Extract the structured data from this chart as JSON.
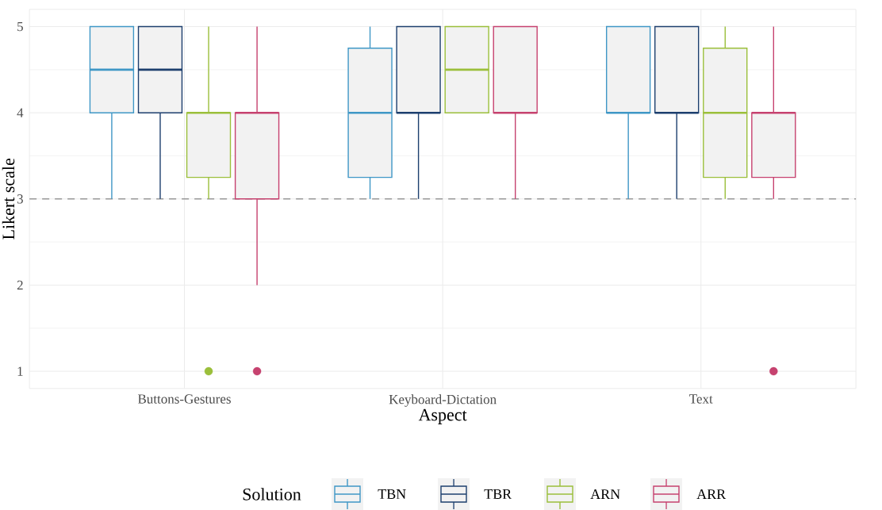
{
  "chart_data": {
    "type": "box",
    "xlabel": "Aspect",
    "ylabel": "Likert scale",
    "legend_title": "Solution",
    "categories": [
      "Buttons-Gestures",
      "Keyboard-Dictation",
      "Text"
    ],
    "ylim": [
      0.8,
      5.2
    ],
    "yticks": [
      1,
      2,
      3,
      4,
      5
    ],
    "grid": true,
    "legend": "bottom",
    "ref_lines": [
      {
        "axis": "y",
        "value": 3,
        "color": "#999999",
        "line_style": "dashed"
      }
    ],
    "series": [
      {
        "name": "TBN",
        "color": "#3f97c6",
        "boxes": [
          {
            "low": 3,
            "q1": 4,
            "median": 4.5,
            "q3": 5,
            "high": 5
          },
          {
            "low": 3,
            "q1": 3.25,
            "median": 4,
            "q3": 4.75,
            "high": 5
          },
          {
            "low": 3,
            "q1": 4,
            "median": 4,
            "q3": 5,
            "high": 5
          }
        ]
      },
      {
        "name": "TBR",
        "color": "#1d3f6e",
        "boxes": [
          {
            "low": 3,
            "q1": 4,
            "median": 4.5,
            "q3": 5,
            "high": 5
          },
          {
            "low": 3,
            "q1": 4,
            "median": 4,
            "q3": 5,
            "high": 5
          },
          {
            "low": 3,
            "q1": 4,
            "median": 4,
            "q3": 5,
            "high": 5
          }
        ]
      },
      {
        "name": "ARN",
        "color": "#9bbf3b",
        "boxes": [
          {
            "low": 3,
            "q1": 3.25,
            "median": 4,
            "q3": 4,
            "high": 5,
            "outliers": [
              1
            ]
          },
          {
            "low": 4,
            "q1": 4,
            "median": 4.5,
            "q3": 5,
            "high": 5
          },
          {
            "low": 3,
            "q1": 3.25,
            "median": 4,
            "q3": 4.75,
            "high": 5
          }
        ]
      },
      {
        "name": "ARR",
        "color": "#c6426f",
        "boxes": [
          {
            "low": 2,
            "q1": 3,
            "median": 4,
            "q3": 4,
            "high": 5,
            "outliers": [
              1
            ]
          },
          {
            "low": 3,
            "q1": 4,
            "median": 4,
            "q3": 5,
            "high": 5
          },
          {
            "low": 3,
            "q1": 3.25,
            "median": 4,
            "q3": 4,
            "high": 5,
            "outliers": [
              1
            ]
          }
        ]
      }
    ]
  }
}
